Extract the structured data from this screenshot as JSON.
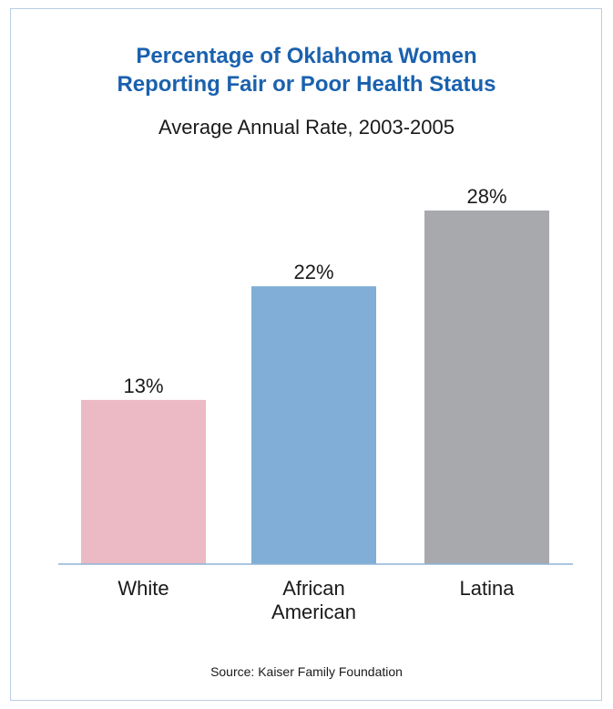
{
  "chart_data": {
    "type": "bar",
    "title_line1": "Percentage of Oklahoma Women",
    "title_line2": "Reporting Fair or Poor Health Status",
    "subtitle": "Average Annual Rate, 2003-2005",
    "categories": [
      [
        "White"
      ],
      [
        "African",
        "American"
      ],
      [
        "Latina"
      ]
    ],
    "values": [
      13,
      22,
      28
    ],
    "value_labels": [
      "13%",
      "22%",
      "28%"
    ],
    "colors": [
      "#ecbac4",
      "#80aed6",
      "#a8a9ad"
    ],
    "unit": "%",
    "ylim": [
      0,
      28
    ],
    "grid": false,
    "source": "Source: Kaiser Family Foundation"
  },
  "colors": {
    "title": "#1a61ae",
    "frame": "#b9cde3",
    "axis": "#8fb3d6"
  }
}
